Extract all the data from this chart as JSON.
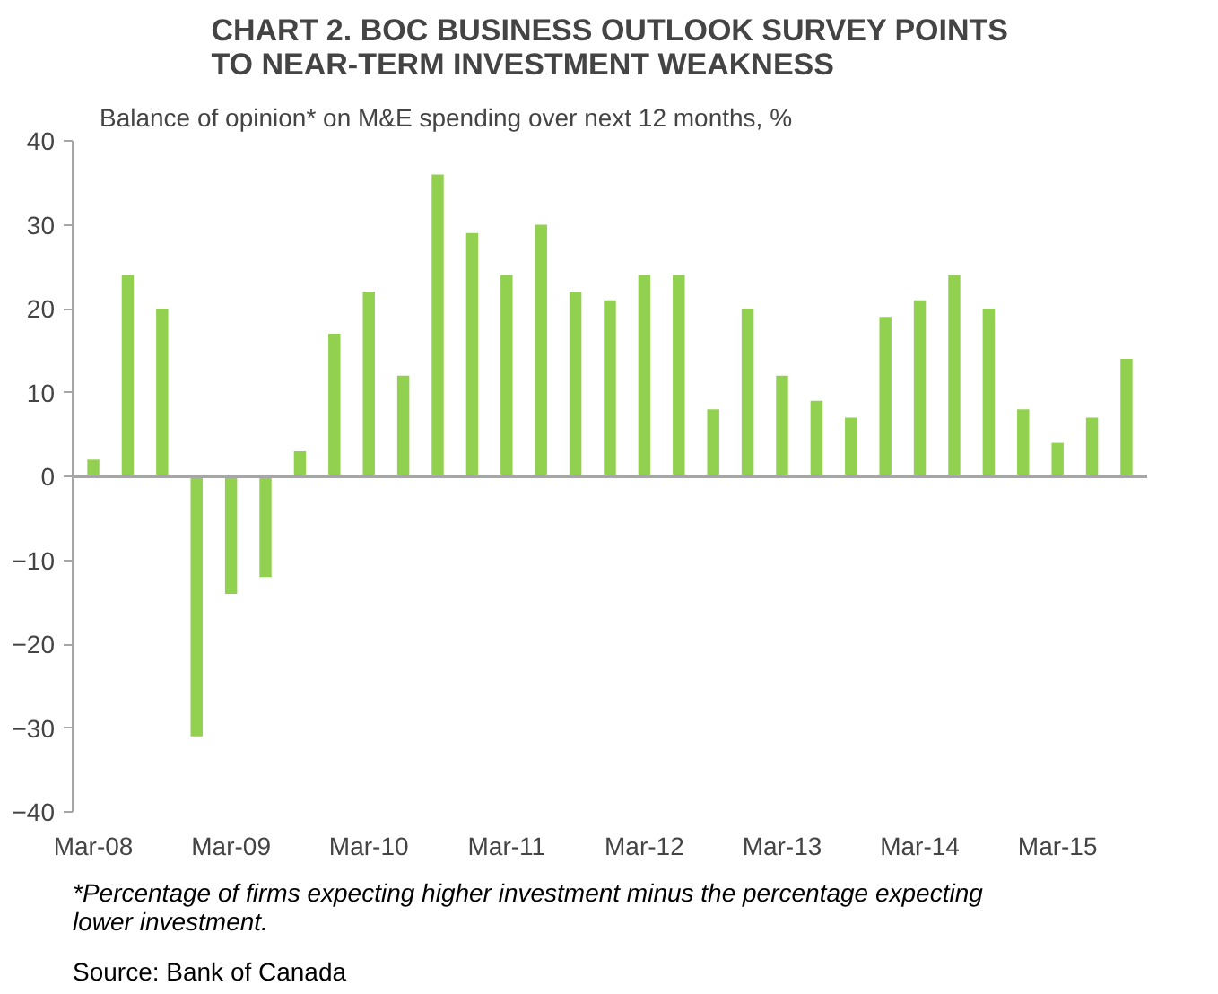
{
  "chart_data": {
    "type": "bar",
    "title": "CHART 2. BOC BUSINESS OUTLOOK SURVEY POINTS\nTO NEAR-TERM INVESTMENT WEAKNESS",
    "subtitle": "Balance of opinion* on M&E spending over next 12 months, %",
    "categories": [
      "Mar-08",
      null,
      null,
      null,
      "Mar-09",
      null,
      null,
      null,
      "Mar-10",
      null,
      null,
      null,
      "Mar-11",
      null,
      null,
      null,
      "Mar-12",
      null,
      null,
      null,
      "Mar-13",
      null,
      null,
      null,
      "Mar-14",
      null,
      null,
      null,
      "Mar-15",
      null,
      null
    ],
    "values": [
      2,
      24,
      20,
      -31,
      -14,
      -12,
      3,
      17,
      22,
      12,
      36,
      29,
      24,
      30,
      22,
      21,
      24,
      24,
      8,
      20,
      12,
      9,
      7,
      19,
      21,
      24,
      20,
      8,
      4,
      7,
      14
    ],
    "color": "#92d050",
    "ylim": [
      -40,
      40
    ],
    "yticks": [
      -40,
      -30,
      -20,
      -10,
      0,
      10,
      20,
      30,
      40
    ],
    "annotations": [
      "Source: Bank of Canada",
      "*Percentage of firms expecting higher investment minus the percentage expecting lower investment."
    ]
  }
}
